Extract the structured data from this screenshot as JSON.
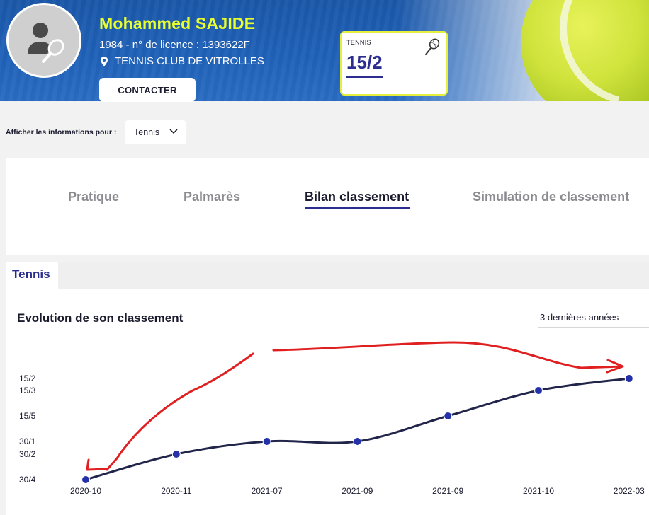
{
  "profile": {
    "name": "Mohammed SAJIDE",
    "meta": "1984 - n° de licence : 1393622F",
    "club": "TENNIS CLUB DE VITROLLES",
    "contact_label": "CONTACTER"
  },
  "rank_card": {
    "sport": "TENNIS",
    "value": "15/2"
  },
  "filter": {
    "label": "Afficher les informations pour :",
    "selected": "Tennis"
  },
  "tabs": [
    {
      "label": "Pratique",
      "active": false
    },
    {
      "label": "Palmarès",
      "active": false
    },
    {
      "label": "Bilan classement",
      "active": true
    },
    {
      "label": "Simulation de classement",
      "active": false
    }
  ],
  "subtab": {
    "label": "Tennis"
  },
  "section": {
    "title": "Evolution de son classement",
    "period": "3 dernières années"
  },
  "colors": {
    "banner": "#1f61b8",
    "accent_yellow": "#e9ff2d",
    "navy": "#2b2e8f",
    "line": "#22254a",
    "annotation": "#e02020"
  },
  "chart_data": {
    "type": "line",
    "y_categories": [
      "30/4",
      "30/2",
      "30/1",
      "15/5",
      "15/3",
      "15/2"
    ],
    "x": [
      "2020-10",
      "2020-11",
      "2021-07",
      "2021-09",
      "2021-09",
      "2021-10",
      "2022-03"
    ],
    "series": [
      {
        "values": [
          "30/4",
          "30/2",
          "30/1",
          "30/1",
          "15/5",
          "15/3",
          "15/2"
        ]
      }
    ],
    "grid": false,
    "legend": "none"
  }
}
